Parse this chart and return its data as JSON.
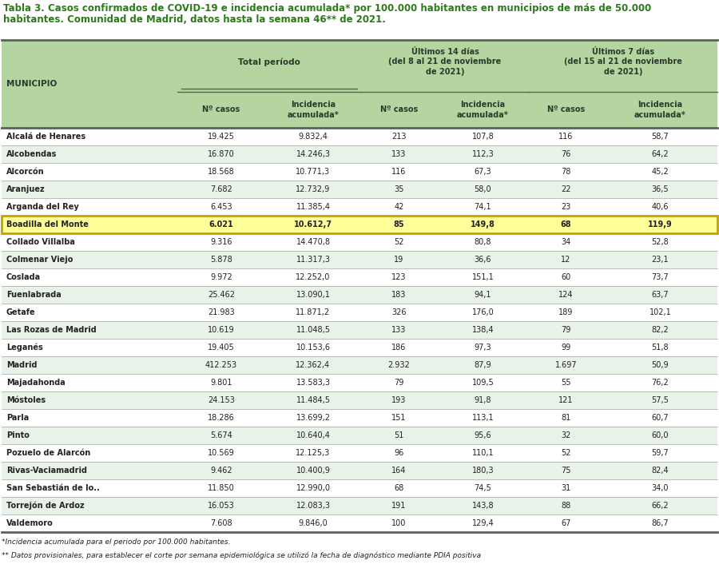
{
  "title_line1": "Tabla 3. Casos confirmados de COVID-19 e incidencia acumulada* por 100.000 habitantes en municipios de más de 50.000",
  "title_line2": "habitantes. Comunidad de Madrid, datos hasta la semana 46** de 2021.",
  "rows": [
    [
      "Alcalá de Henares",
      "19.425",
      "9.832,4",
      "213",
      "107,8",
      "116",
      "58,7"
    ],
    [
      "Alcobendas",
      "16.870",
      "14.246,3",
      "133",
      "112,3",
      "76",
      "64,2"
    ],
    [
      "Alcorcón",
      "18.568",
      "10.771,3",
      "116",
      "67,3",
      "78",
      "45,2"
    ],
    [
      "Aranjuez",
      "7.682",
      "12.732,9",
      "35",
      "58,0",
      "22",
      "36,5"
    ],
    [
      "Arganda del Rey",
      "6.453",
      "11.385,4",
      "42",
      "74,1",
      "23",
      "40,6"
    ],
    [
      "Boadilla del Monte",
      "6.021",
      "10.612,7",
      "85",
      "149,8",
      "68",
      "119,9"
    ],
    [
      "Collado Villalba",
      "9.316",
      "14.470,8",
      "52",
      "80,8",
      "34",
      "52,8"
    ],
    [
      "Colmenar Viejo",
      "5.878",
      "11.317,3",
      "19",
      "36,6",
      "12",
      "23,1"
    ],
    [
      "Coslada",
      "9.972",
      "12.252,0",
      "123",
      "151,1",
      "60",
      "73,7"
    ],
    [
      "Fuenlabrada",
      "25.462",
      "13.090,1",
      "183",
      "94,1",
      "124",
      "63,7"
    ],
    [
      "Getafe",
      "21.983",
      "11.871,2",
      "326",
      "176,0",
      "189",
      "102,1"
    ],
    [
      "Las Rozas de Madrid",
      "10.619",
      "11.048,5",
      "133",
      "138,4",
      "79",
      "82,2"
    ],
    [
      "Leganés",
      "19.405",
      "10.153,6",
      "186",
      "97,3",
      "99",
      "51,8"
    ],
    [
      "Madrid",
      "412.253",
      "12.362,4",
      "2.932",
      "87,9",
      "1.697",
      "50,9"
    ],
    [
      "Majadahonda",
      "9.801",
      "13.583,3",
      "79",
      "109,5",
      "55",
      "76,2"
    ],
    [
      "Móstoles",
      "24.153",
      "11.484,5",
      "193",
      "91,8",
      "121",
      "57,5"
    ],
    [
      "Parla",
      "18.286",
      "13.699,2",
      "151",
      "113,1",
      "81",
      "60,7"
    ],
    [
      "Pinto",
      "5.674",
      "10.640,4",
      "51",
      "95,6",
      "32",
      "60,0"
    ],
    [
      "Pozuelo de Alarcón",
      "10.569",
      "12.125,3",
      "96",
      "110,1",
      "52",
      "59,7"
    ],
    [
      "Rivas-Vaciamadrid",
      "9.462",
      "10.400,9",
      "164",
      "180,3",
      "75",
      "82,4"
    ],
    [
      "San Sebastián de lo..",
      "11.850",
      "12.990,0",
      "68",
      "74,5",
      "31",
      "34,0"
    ],
    [
      "Torrejón de Ardoz",
      "16.053",
      "12.083,3",
      "191",
      "143,8",
      "88",
      "66,2"
    ],
    [
      "Valdemoro",
      "7.608",
      "9.846,0",
      "100",
      "129,4",
      "67",
      "86,7"
    ]
  ],
  "highlighted_row": 5,
  "highlight_bg": "#FFFF99",
  "highlight_border": "#C8A000",
  "header_bg": "#b5d5a0",
  "alt_row_bg": "#e8f2e8",
  "white_row_bg": "#ffffff",
  "title_color": "#2d7a1a",
  "text_dark": "#222222",
  "header_text_color": "#2a3a2a",
  "border_dark": "#556655",
  "border_light": "#99aa99",
  "footnote1": "*Incidencia acumulada para el periodo por 100.000 habitantes.",
  "footnote2": "** Datos provisionales, para establecer el corte por semana epidemiológica se utilizó la fecha de diagnóstico mediante PDIA positiva"
}
